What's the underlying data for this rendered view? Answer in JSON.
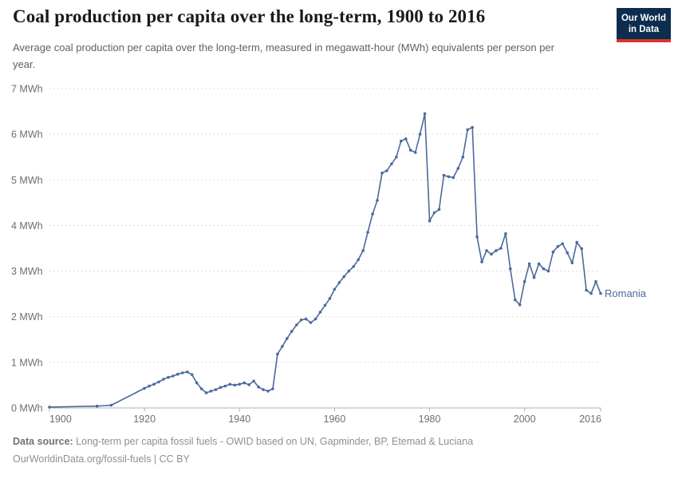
{
  "header": {
    "title": "Coal production per capita over the long-term, 1900 to 2016",
    "subtitle": "Average coal production per capita over the long-term, measured in megawatt-hour (MWh) equivalents per person per year.",
    "logo_line1": "Our World",
    "logo_line2": "in Data"
  },
  "chart_data": {
    "type": "line",
    "title": "Coal production per capita over the long-term, 1900 to 2016",
    "unit": "MWh",
    "xlabel": "",
    "ylabel": "MWh",
    "xlim": [
      1900,
      2016
    ],
    "ylim": [
      0,
      7
    ],
    "x_ticks": [
      1900,
      1920,
      1940,
      1960,
      1980,
      2000,
      2016
    ],
    "y_ticks": [
      0,
      1,
      2,
      3,
      4,
      5,
      6,
      7
    ],
    "y_tick_label_suffix": " MWh",
    "grid": "horizontal-dashed",
    "legend_position": "end-of-line-label",
    "end_label": "Romania",
    "series": [
      {
        "name": "Romania",
        "color": "#4c6a9c",
        "points": [
          [
            1900,
            0.02
          ],
          [
            1910,
            0.04
          ],
          [
            1913,
            0.06
          ],
          [
            1920,
            0.43
          ],
          [
            1921,
            0.48
          ],
          [
            1922,
            0.52
          ],
          [
            1923,
            0.57
          ],
          [
            1924,
            0.63
          ],
          [
            1925,
            0.67
          ],
          [
            1926,
            0.7
          ],
          [
            1927,
            0.74
          ],
          [
            1928,
            0.77
          ],
          [
            1929,
            0.79
          ],
          [
            1930,
            0.73
          ],
          [
            1931,
            0.55
          ],
          [
            1932,
            0.42
          ],
          [
            1933,
            0.33
          ],
          [
            1934,
            0.37
          ],
          [
            1935,
            0.4
          ],
          [
            1936,
            0.45
          ],
          [
            1937,
            0.48
          ],
          [
            1938,
            0.52
          ],
          [
            1939,
            0.5
          ],
          [
            1940,
            0.52
          ],
          [
            1941,
            0.55
          ],
          [
            1942,
            0.51
          ],
          [
            1943,
            0.59
          ],
          [
            1944,
            0.46
          ],
          [
            1945,
            0.4
          ],
          [
            1946,
            0.37
          ],
          [
            1947,
            0.42
          ],
          [
            1948,
            1.18
          ],
          [
            1949,
            1.35
          ],
          [
            1950,
            1.52
          ],
          [
            1951,
            1.68
          ],
          [
            1952,
            1.82
          ],
          [
            1953,
            1.93
          ],
          [
            1954,
            1.95
          ],
          [
            1955,
            1.87
          ],
          [
            1956,
            1.95
          ],
          [
            1957,
            2.1
          ],
          [
            1958,
            2.25
          ],
          [
            1959,
            2.4
          ],
          [
            1960,
            2.6
          ],
          [
            1961,
            2.75
          ],
          [
            1962,
            2.88
          ],
          [
            1963,
            3.0
          ],
          [
            1964,
            3.1
          ],
          [
            1965,
            3.25
          ],
          [
            1966,
            3.45
          ],
          [
            1967,
            3.85
          ],
          [
            1968,
            4.25
          ],
          [
            1969,
            4.55
          ],
          [
            1970,
            5.15
          ],
          [
            1971,
            5.2
          ],
          [
            1972,
            5.35
          ],
          [
            1973,
            5.5
          ],
          [
            1974,
            5.85
          ],
          [
            1975,
            5.9
          ],
          [
            1976,
            5.65
          ],
          [
            1977,
            5.6
          ],
          [
            1978,
            6.0
          ],
          [
            1979,
            6.45
          ],
          [
            1980,
            4.1
          ],
          [
            1981,
            4.28
          ],
          [
            1982,
            4.35
          ],
          [
            1983,
            5.1
          ],
          [
            1984,
            5.07
          ],
          [
            1985,
            5.05
          ],
          [
            1986,
            5.25
          ],
          [
            1987,
            5.5
          ],
          [
            1988,
            6.1
          ],
          [
            1989,
            6.15
          ],
          [
            1990,
            3.75
          ],
          [
            1991,
            3.2
          ],
          [
            1992,
            3.45
          ],
          [
            1993,
            3.37
          ],
          [
            1994,
            3.45
          ],
          [
            1995,
            3.5
          ],
          [
            1996,
            3.82
          ],
          [
            1997,
            3.05
          ],
          [
            1998,
            2.37
          ],
          [
            1999,
            2.26
          ],
          [
            2000,
            2.77
          ],
          [
            2001,
            3.16
          ],
          [
            2002,
            2.86
          ],
          [
            2003,
            3.16
          ],
          [
            2004,
            3.05
          ],
          [
            2005,
            3.0
          ],
          [
            2006,
            3.42
          ],
          [
            2007,
            3.54
          ],
          [
            2008,
            3.6
          ],
          [
            2009,
            3.4
          ],
          [
            2010,
            3.18
          ],
          [
            2011,
            3.63
          ],
          [
            2012,
            3.49
          ],
          [
            2013,
            2.58
          ],
          [
            2014,
            2.51
          ],
          [
            2015,
            2.77
          ],
          [
            2016,
            2.51
          ]
        ]
      }
    ]
  },
  "footer": {
    "datasource_label": "Data source:",
    "datasource_text": "Long-term per capita fossil fuels - OWID based on UN, Gapminder, BP, Etemad & Luciana",
    "link_text": "OurWorldinData.org/fossil-fuels | CC BY"
  },
  "colors": {
    "line": "#4c6a9c",
    "entity_label": "#4c6a9c",
    "grid": "#dedede",
    "axis": "#b0b0b0",
    "tick_label": "#6e6e6e",
    "logo_bg": "#0c2d4e",
    "logo_bar": "#d8352a"
  }
}
